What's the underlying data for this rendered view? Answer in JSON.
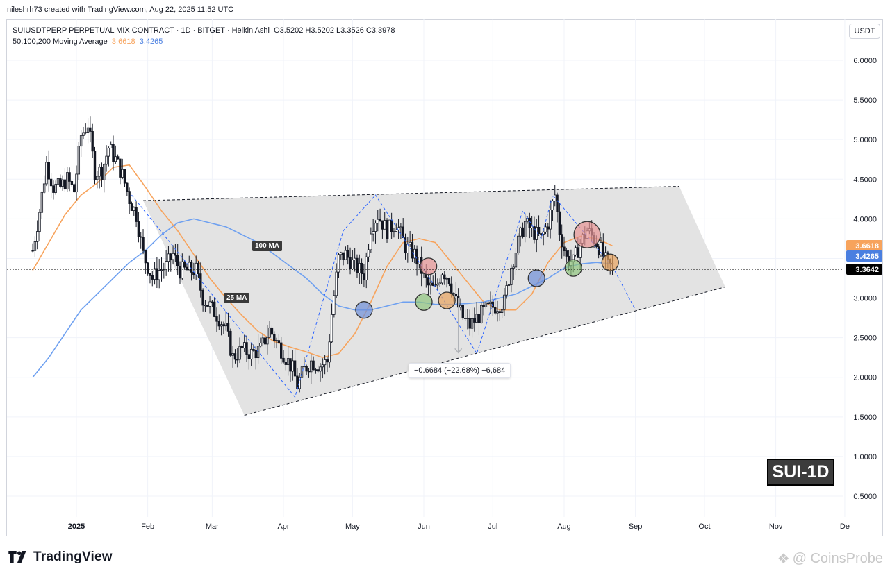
{
  "header": {
    "created_by": "nileshrh73 created with TradingView.com, Aug 22, 2025 11:52 UTC"
  },
  "legend": {
    "symbol_line": "SUIUSDTPERP PERPETUAL MIX CONTRACT · 1D · BITGET · Heikin Ashi",
    "ohlc": {
      "o": "O3.5202",
      "h": "H3.5202",
      "l": "L3.3526",
      "c": "C3.3978"
    },
    "ma_label": "50,100,200 Moving Average",
    "ma_orange_value": "3.6618",
    "ma_blue_value": "3.4265"
  },
  "currency_button": "USDT",
  "footer": {
    "brand": "TradingView",
    "watermark": "CoinsProbe"
  },
  "symbol_badge": "SUI-1D",
  "annotations": {
    "ma100_tag": "100 MA",
    "ma25_tag": "25 MA",
    "measure_label": "−0.6684 (−22.68%) −6,684"
  },
  "colors": {
    "orange_ma": "#f7a35c",
    "blue_ma": "#6ea0f0",
    "candle_dark": "#131722",
    "band_fill": "#e3e3e3",
    "price_current": "#000000"
  },
  "chart_data": {
    "type": "candlestick",
    "y_axis": {
      "ticks": [
        "6.0000",
        "5.5000",
        "5.0000",
        "4.5000",
        "4.0000",
        "3.5000",
        "3.0000",
        "2.5000",
        "2.0000",
        "1.5000",
        "1.0000",
        "0.5000"
      ],
      "range": [
        0.25,
        6.35
      ]
    },
    "x_axis": {
      "ticks": [
        "2025",
        "Feb",
        "Mar",
        "Apr",
        "May",
        "Jun",
        "Jul",
        "Aug",
        "Sep",
        "Oct",
        "Nov",
        "De"
      ]
    },
    "price_labels": [
      {
        "value": "3.6618",
        "color": "#f7a35c"
      },
      {
        "value": "3.4265",
        "color": "#4a7fe0"
      },
      {
        "value": "3.3642",
        "color": "#000000"
      }
    ],
    "current_price": 3.3642,
    "close_path": [
      [
        "2024-12-13",
        3.6
      ],
      [
        "2024-12-16",
        4.1
      ],
      [
        "2024-12-19",
        4.7
      ],
      [
        "2024-12-22",
        4.4
      ],
      [
        "2024-12-25",
        4.4
      ],
      [
        "2024-12-28",
        4.5
      ],
      [
        "2024-12-31",
        4.35
      ],
      [
        "2025-01-03",
        5.05
      ],
      [
        "2025-01-06",
        5.2
      ],
      [
        "2025-01-09",
        4.6
      ],
      [
        "2025-01-12",
        4.6
      ],
      [
        "2025-01-15",
        4.9
      ],
      [
        "2025-01-18",
        4.75
      ],
      [
        "2025-01-21",
        4.55
      ],
      [
        "2025-01-24",
        4.25
      ],
      [
        "2025-01-27",
        4.05
      ],
      [
        "2025-01-30",
        3.55
      ],
      [
        "2025-02-03",
        3.25
      ],
      [
        "2025-02-06",
        3.35
      ],
      [
        "2025-02-09",
        3.4
      ],
      [
        "2025-02-12",
        3.55
      ],
      [
        "2025-02-15",
        3.35
      ],
      [
        "2025-02-19",
        3.35
      ],
      [
        "2025-02-22",
        3.35
      ],
      [
        "2025-02-25",
        3.0
      ],
      [
        "2025-02-28",
        2.9
      ],
      [
        "2025-03-04",
        2.75
      ],
      [
        "2025-03-07",
        2.6
      ],
      [
        "2025-03-10",
        2.25
      ],
      [
        "2025-03-14",
        2.35
      ],
      [
        "2025-03-18",
        2.3
      ],
      [
        "2025-03-22",
        2.35
      ],
      [
        "2025-03-26",
        2.6
      ],
      [
        "2025-03-29",
        2.45
      ],
      [
        "2025-04-02",
        2.25
      ],
      [
        "2025-04-05",
        2.1
      ],
      [
        "2025-04-07",
        1.9
      ],
      [
        "2025-04-10",
        2.1
      ],
      [
        "2025-04-13",
        2.2
      ],
      [
        "2025-04-17",
        2.15
      ],
      [
        "2025-04-20",
        2.2
      ],
      [
        "2025-04-22",
        2.8
      ],
      [
        "2025-04-25",
        3.5
      ],
      [
        "2025-04-28",
        3.55
      ],
      [
        "2025-05-02",
        3.4
      ],
      [
        "2025-05-06",
        3.3
      ],
      [
        "2025-05-09",
        3.9
      ],
      [
        "2025-05-12",
        4.05
      ],
      [
        "2025-05-16",
        3.85
      ],
      [
        "2025-05-20",
        3.95
      ],
      [
        "2025-05-24",
        3.65
      ],
      [
        "2025-05-28",
        3.55
      ],
      [
        "2025-05-31",
        3.35
      ],
      [
        "2025-06-03",
        3.15
      ],
      [
        "2025-06-06",
        3.1
      ],
      [
        "2025-06-09",
        3.35
      ],
      [
        "2025-06-12",
        3.25
      ],
      [
        "2025-06-15",
        2.95
      ],
      [
        "2025-06-18",
        2.75
      ],
      [
        "2025-06-21",
        2.65
      ],
      [
        "2025-06-24",
        2.75
      ],
      [
        "2025-06-28",
        2.85
      ],
      [
        "2025-07-02",
        2.9
      ],
      [
        "2025-07-06",
        2.95
      ],
      [
        "2025-07-09",
        3.4
      ],
      [
        "2025-07-12",
        3.7
      ],
      [
        "2025-07-15",
        3.95
      ],
      [
        "2025-07-18",
        3.85
      ],
      [
        "2025-07-22",
        3.75
      ],
      [
        "2025-07-25",
        3.95
      ],
      [
        "2025-07-28",
        4.3
      ],
      [
        "2025-07-30",
        3.85
      ],
      [
        "2025-08-02",
        3.5
      ],
      [
        "2025-08-05",
        3.45
      ],
      [
        "2025-08-08",
        3.7
      ],
      [
        "2025-08-11",
        3.85
      ],
      [
        "2025-08-14",
        3.75
      ],
      [
        "2025-08-17",
        3.6
      ],
      [
        "2025-08-20",
        3.4
      ],
      [
        "2025-08-22",
        3.4
      ]
    ],
    "series": [
      {
        "name": "Orange MA",
        "color": "#f7a35c",
        "points": [
          [
            "2024-12-13",
            3.35
          ],
          [
            "2024-12-20",
            3.7
          ],
          [
            "2024-12-27",
            4.05
          ],
          [
            "2025-01-03",
            4.3
          ],
          [
            "2025-01-10",
            4.45
          ],
          [
            "2025-01-17",
            4.65
          ],
          [
            "2025-01-24",
            4.68
          ],
          [
            "2025-01-31",
            4.4
          ],
          [
            "2025-02-07",
            4.1
          ],
          [
            "2025-02-14",
            3.85
          ],
          [
            "2025-02-21",
            3.55
          ],
          [
            "2025-02-28",
            3.25
          ],
          [
            "2025-03-07",
            3.0
          ],
          [
            "2025-03-14",
            2.78
          ],
          [
            "2025-03-21",
            2.58
          ],
          [
            "2025-03-28",
            2.45
          ],
          [
            "2025-04-04",
            2.38
          ],
          [
            "2025-04-11",
            2.32
          ],
          [
            "2025-04-18",
            2.25
          ],
          [
            "2025-04-25",
            2.3
          ],
          [
            "2025-05-02",
            2.55
          ],
          [
            "2025-05-09",
            2.95
          ],
          [
            "2025-05-16",
            3.4
          ],
          [
            "2025-05-23",
            3.7
          ],
          [
            "2025-05-30",
            3.75
          ],
          [
            "2025-06-06",
            3.7
          ],
          [
            "2025-06-13",
            3.45
          ],
          [
            "2025-06-20",
            3.2
          ],
          [
            "2025-06-27",
            2.95
          ],
          [
            "2025-07-04",
            2.85
          ],
          [
            "2025-07-11",
            2.85
          ],
          [
            "2025-07-18",
            3.05
          ],
          [
            "2025-07-25",
            3.45
          ],
          [
            "2025-08-01",
            3.7
          ],
          [
            "2025-08-08",
            3.78
          ],
          [
            "2025-08-15",
            3.75
          ],
          [
            "2025-08-22",
            3.66
          ]
        ]
      },
      {
        "name": "Blue MA",
        "color": "#6ea0f0",
        "points": [
          [
            "2024-12-13",
            2.0
          ],
          [
            "2024-12-20",
            2.25
          ],
          [
            "2024-12-27",
            2.55
          ],
          [
            "2025-01-03",
            2.85
          ],
          [
            "2025-01-10",
            3.05
          ],
          [
            "2025-01-17",
            3.25
          ],
          [
            "2025-01-24",
            3.45
          ],
          [
            "2025-01-31",
            3.6
          ],
          [
            "2025-02-07",
            3.8
          ],
          [
            "2025-02-14",
            3.95
          ],
          [
            "2025-02-21",
            4.0
          ],
          [
            "2025-02-28",
            3.95
          ],
          [
            "2025-03-07",
            3.9
          ],
          [
            "2025-03-14",
            3.8
          ],
          [
            "2025-03-21",
            3.7
          ],
          [
            "2025-03-28",
            3.55
          ],
          [
            "2025-04-04",
            3.4
          ],
          [
            "2025-04-11",
            3.25
          ],
          [
            "2025-04-18",
            3.05
          ],
          [
            "2025-04-25",
            2.9
          ],
          [
            "2025-05-02",
            2.85
          ],
          [
            "2025-05-09",
            2.85
          ],
          [
            "2025-05-16",
            2.9
          ],
          [
            "2025-05-23",
            2.95
          ],
          [
            "2025-05-30",
            2.95
          ],
          [
            "2025-06-06",
            2.92
          ],
          [
            "2025-06-13",
            2.92
          ],
          [
            "2025-06-20",
            2.93
          ],
          [
            "2025-06-27",
            2.95
          ],
          [
            "2025-07-04",
            3.0
          ],
          [
            "2025-07-11",
            3.05
          ],
          [
            "2025-07-18",
            3.15
          ],
          [
            "2025-07-25",
            3.25
          ],
          [
            "2025-08-01",
            3.38
          ],
          [
            "2025-08-08",
            3.43
          ],
          [
            "2025-08-15",
            3.45
          ],
          [
            "2025-08-22",
            3.43
          ]
        ]
      }
    ],
    "channel": {
      "upper": [
        [
          "2025-01-30",
          4.23
        ],
        [
          "2025-09-20",
          4.41
        ]
      ],
      "lower": [
        [
          "2025-03-15",
          1.52
        ],
        [
          "2025-10-10",
          3.14
        ]
      ],
      "band_polygon": [
        [
          "2025-01-30",
          4.23
        ],
        [
          "2025-09-20",
          4.41
        ],
        [
          "2025-10-10",
          3.14
        ],
        [
          "2025-03-15",
          1.52
        ]
      ]
    },
    "zigzag": [
      [
        "2025-01-25",
        4.3
      ],
      [
        "2025-04-06",
        1.75
      ],
      [
        "2025-04-27",
        3.85
      ],
      [
        "2025-05-11",
        4.3
      ],
      [
        "2025-06-08",
        3.05
      ],
      [
        "2025-06-24",
        2.3
      ],
      [
        "2025-07-14",
        4.1
      ],
      [
        "2025-07-22",
        3.75
      ],
      [
        "2025-07-27",
        4.3
      ],
      [
        "2025-08-22",
        3.4
      ],
      [
        "2025-09-01",
        2.85
      ]
    ],
    "markers": [
      [
        "2025-05-06",
        2.85,
        "#6e8fd9"
      ],
      [
        "2025-06-03",
        3.4,
        "#e89494"
      ],
      [
        "2025-06-01",
        2.95,
        "#8fc47e"
      ],
      [
        "2025-06-11",
        2.97,
        "#e8a25c"
      ],
      [
        "2025-07-20",
        3.25,
        "#6e8fd9"
      ],
      [
        "2025-08-05",
        3.38,
        "#8fc47e"
      ],
      [
        "2025-08-11",
        3.8,
        "#e89494"
      ],
      [
        "2025-08-21",
        3.45,
        "#e8a25c"
      ]
    ],
    "measure_arrow": [
      [
        "2025-06-16",
        3.0
      ],
      [
        "2025-06-16",
        2.31
      ]
    ],
    "grid": true
  }
}
